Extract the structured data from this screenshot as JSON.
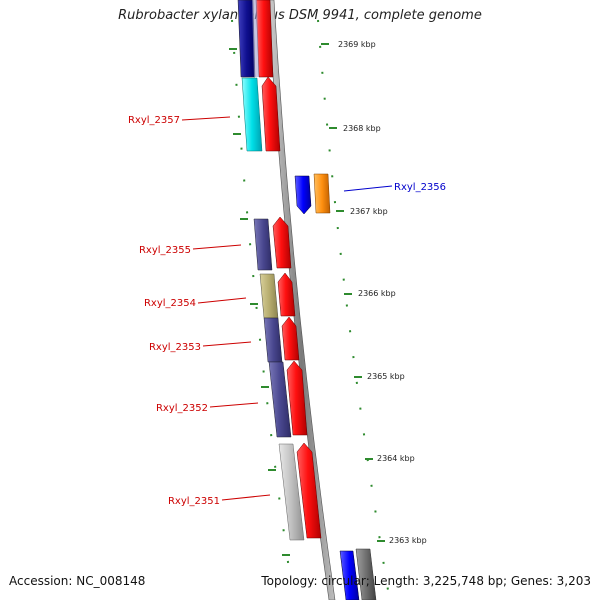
{
  "title": "Rubrobacter xylanophilus DSM 9941, complete genome",
  "accession": "Accession: NC_008148",
  "summary": "Topology: circular; Length: 3,225,748 bp; Genes: 3,203",
  "scale_labels": [
    "2369 kbp",
    "2368 kbp",
    "2367 kbp",
    "2366 kbp",
    "2365 kbp",
    "2364 kbp",
    "2363 kbp"
  ],
  "gene_labels": [
    {
      "text": "Rxyl_2357",
      "color": "#cc0000"
    },
    {
      "text": "Rxyl_2356",
      "color": "#0000cc"
    },
    {
      "text": "Rxyl_2355",
      "color": "#cc0000"
    },
    {
      "text": "Rxyl_2354",
      "color": "#cc0000"
    },
    {
      "text": "Rxyl_2353",
      "color": "#cc0000"
    },
    {
      "text": "Rxyl_2352",
      "color": "#cc0000"
    },
    {
      "text": "Rxyl_2351",
      "color": "#cc0000"
    }
  ]
}
